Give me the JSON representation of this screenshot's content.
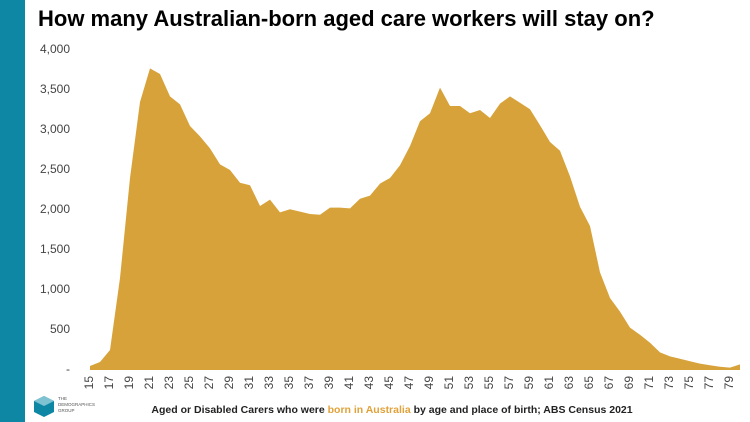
{
  "chart_data": {
    "type": "area",
    "title": "How many Australian-born aged care workers will stay on?",
    "caption_before": "Aged or Disabled Carers who were ",
    "caption_highlight": "born in Australia",
    "caption_after": " by age and place of birth; ABS Census 2021",
    "logo_lines": [
      "THE",
      "DEMOGRAPHICS",
      "GROUP"
    ],
    "categories": [
      "15",
      null,
      "17",
      null,
      "19",
      null,
      "21",
      null,
      "23",
      null,
      "25",
      null,
      "27",
      null,
      "29",
      null,
      "31",
      null,
      "33",
      null,
      "35",
      null,
      "37",
      null,
      "39",
      null,
      "41",
      null,
      "43",
      null,
      "45",
      null,
      "47",
      null,
      "49",
      null,
      "51",
      null,
      "53",
      null,
      "55",
      null,
      "57",
      null,
      "59",
      null,
      "61",
      null,
      "63",
      null,
      "65",
      null,
      "67",
      null,
      "69",
      null,
      "71",
      null,
      "73",
      null,
      "75",
      null,
      "77",
      null,
      "79",
      null
    ],
    "values": [
      50,
      100,
      250,
      1150,
      2400,
      3350,
      3770,
      3700,
      3420,
      3320,
      3050,
      2920,
      2770,
      2570,
      2500,
      2340,
      2310,
      2050,
      2130,
      1970,
      2010,
      1980,
      1950,
      1940,
      2030,
      2030,
      2020,
      2140,
      2180,
      2330,
      2400,
      2560,
      2800,
      3110,
      3210,
      3530,
      3300,
      3300,
      3210,
      3250,
      3150,
      3330,
      3420,
      3340,
      3260,
      3060,
      2850,
      2740,
      2420,
      2040,
      1800,
      1220,
      900,
      730,
      530,
      440,
      340,
      220,
      170,
      140,
      110,
      80,
      60,
      40,
      30,
      70
    ],
    "color": "#d8a23a",
    "highlight_color": "#e0a23a",
    "ylim": [
      0,
      4000
    ],
    "yticks": [
      {
        "value": 0,
        "label": "-"
      },
      500,
      {
        "value": 1000,
        "label": "1,000"
      },
      {
        "value": 1500,
        "label": "1,500"
      },
      {
        "value": 2000,
        "label": "2,000"
      },
      {
        "value": 2500,
        "label": "2,500"
      },
      {
        "value": 3000,
        "label": "3,000"
      },
      {
        "value": 3500,
        "label": "3,500"
      },
      {
        "value": 4000,
        "label": "4,000"
      }
    ]
  }
}
